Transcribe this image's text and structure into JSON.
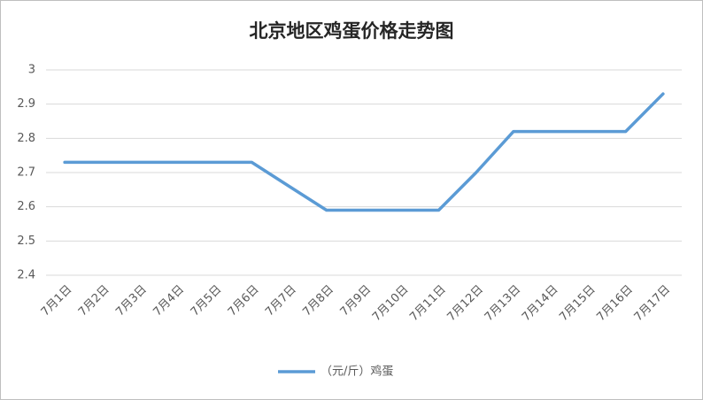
{
  "chart_data": {
    "type": "line",
    "title": "北京地区鸡蛋价格走势图",
    "categories": [
      "7月1日",
      "7月2日",
      "7月3日",
      "7月4日",
      "7月5日",
      "7月6日",
      "7月7日",
      "7月8日",
      "7月9日",
      "7月10日",
      "7月11日",
      "7月12日",
      "7月13日",
      "7月14日",
      "7月15日",
      "7月16日",
      "7月17日"
    ],
    "series": [
      {
        "name": "（元/斤）鸡蛋",
        "color": "#5b9bd5",
        "values": [
          2.73,
          2.73,
          2.73,
          2.73,
          2.73,
          2.73,
          2.66,
          2.59,
          2.59,
          2.59,
          2.59,
          2.7,
          2.82,
          2.82,
          2.82,
          2.82,
          2.93
        ]
      }
    ],
    "ylim": [
      2.4,
      3
    ],
    "yticks": [
      2.4,
      2.5,
      2.6,
      2.7,
      2.8,
      2.9,
      3
    ],
    "grid": true,
    "legend": "bottom"
  }
}
